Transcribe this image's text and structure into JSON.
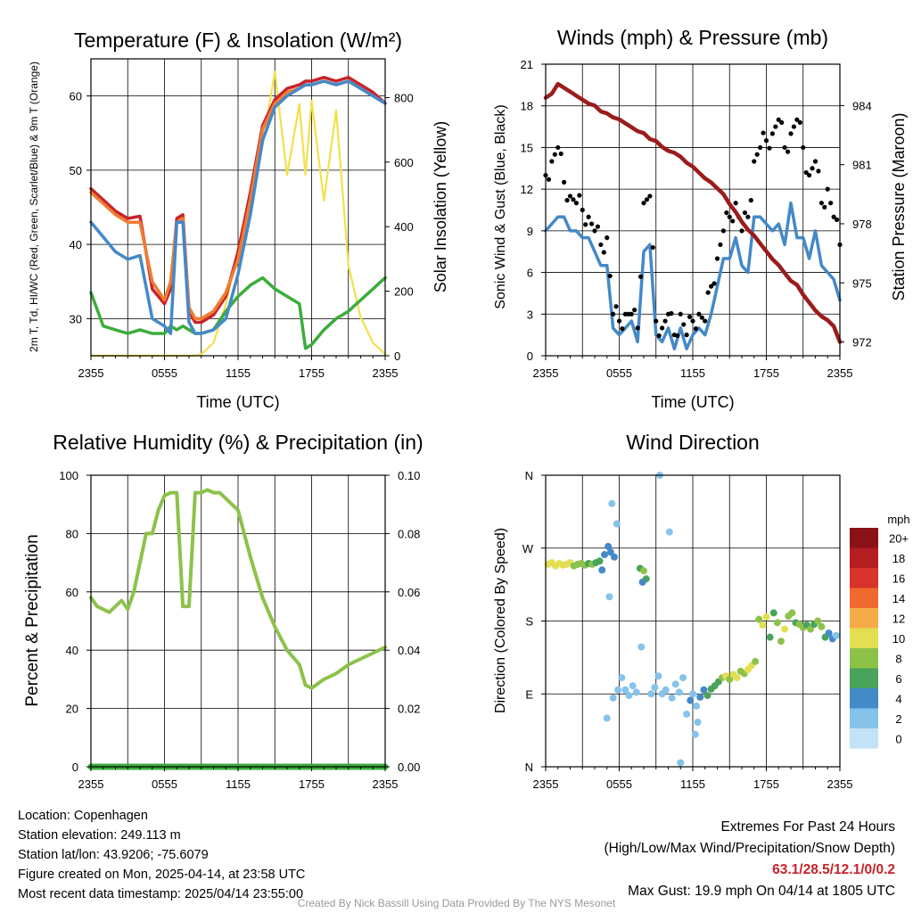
{
  "time_ticks": [
    "2355",
    "0555",
    "1155",
    "1755",
    "2355"
  ],
  "chart_data": [
    {
      "type": "line",
      "title": "Temperature (F) & Insolation (W/m²)",
      "xlabel": "Time (UTC)",
      "ylabel": "2m T, Td, HI/WC (Red, Green, Scarlet/Blue) & 9m T (Orange)",
      "y2label": "Solar Insolation (Yellow)",
      "ylim": [
        25,
        65
      ],
      "yticks": [
        30,
        40,
        50,
        60
      ],
      "y2lim": [
        0,
        920
      ],
      "y2ticks": [
        0,
        200,
        400,
        600,
        800
      ],
      "x_hours": [
        0,
        1,
        2,
        3,
        4,
        5,
        6,
        6.5,
        7,
        7.5,
        8,
        8.5,
        9,
        10,
        11,
        12,
        13,
        14,
        15,
        16,
        17,
        17.5,
        18,
        19,
        20,
        21,
        22,
        23,
        24
      ],
      "series": [
        {
          "name": "2m T",
          "color": "#c8232a",
          "values": [
            47.5,
            46,
            44.5,
            43.5,
            43.8,
            34,
            32,
            34,
            43.5,
            44,
            31,
            29.5,
            29.5,
            30.5,
            33,
            39,
            47,
            56,
            59.5,
            61,
            61.5,
            62,
            62,
            62.5,
            62,
            62.5,
            61.5,
            60.5,
            59
          ]
        },
        {
          "name": "9m T",
          "color": "#f07c30",
          "values": [
            47,
            45.5,
            44,
            43,
            43,
            35,
            32.5,
            35,
            43,
            43.5,
            31.5,
            30,
            30,
            31,
            33.5,
            38,
            46,
            55.5,
            59,
            60.5,
            61,
            61.5,
            61.5,
            62,
            61.5,
            62,
            61,
            60,
            59
          ]
        },
        {
          "name": "HI/WC",
          "color": "#4489c8",
          "values": [
            43,
            41,
            39,
            38,
            38.5,
            30,
            29,
            28,
            43,
            43,
            29.5,
            28,
            28,
            28.5,
            30,
            36,
            44,
            54,
            58.5,
            60,
            61,
            61.5,
            61.5,
            62,
            61.5,
            62,
            61,
            60,
            59
          ]
        },
        {
          "name": "Td",
          "color": "#3bac3b",
          "values": [
            33.5,
            29,
            28.5,
            28,
            28.5,
            28,
            28,
            29,
            28.5,
            29,
            28.5,
            28,
            28,
            28.5,
            31,
            33,
            34.5,
            35.5,
            34,
            33,
            32,
            26,
            26.5,
            28.5,
            30,
            31,
            32.5,
            34,
            35.5
          ]
        },
        {
          "name": "Solar Insolation",
          "color": "#f2e04d",
          "axis": "y2",
          "values": [
            0,
            0,
            0,
            0,
            0,
            0,
            0,
            0,
            0,
            0,
            0,
            0,
            5,
            40,
            160,
            330,
            500,
            650,
            880,
            560,
            780,
            560,
            790,
            480,
            760,
            280,
            120,
            40,
            5
          ]
        }
      ]
    },
    {
      "type": "line",
      "title": "Winds (mph) & Pressure (mb)",
      "xlabel": "Time (UTC)",
      "ylabel": "Sonic Wind & Gust (Blue, Black)",
      "y2label": "Station Pressure (Maroon)",
      "ylim": [
        0,
        21
      ],
      "yticks": [
        0,
        3,
        6,
        9,
        12,
        15,
        18,
        21
      ],
      "y2lim": [
        971.3,
        986.1
      ],
      "y2ticks": [
        972,
        975,
        978,
        981,
        984
      ],
      "x_hours": [
        0,
        0.5,
        1,
        1.5,
        2,
        2.5,
        3,
        3.5,
        4,
        4.5,
        5,
        5.5,
        6,
        6.5,
        7,
        7.5,
        8,
        8.5,
        9,
        9.5,
        10,
        10.5,
        11,
        11.5,
        12,
        12.5,
        13,
        13.5,
        14,
        14.5,
        15,
        15.5,
        16,
        16.5,
        17,
        17.5,
        18,
        18.5,
        19,
        19.5,
        20,
        20.5,
        21,
        21.5,
        22,
        22.5,
        23,
        23.5,
        24
      ],
      "series": [
        {
          "name": "Sonic Wind",
          "color": "#4489c8",
          "values": [
            9,
            9.5,
            10,
            10,
            9,
            9,
            8.5,
            8.5,
            7.5,
            6.5,
            6.5,
            2,
            1.5,
            2,
            2.5,
            1,
            7.5,
            8,
            1.5,
            1,
            2,
            0.5,
            2,
            0.5,
            1.5,
            2,
            1.5,
            3,
            5,
            7,
            7,
            8.5,
            6.5,
            6,
            10,
            10,
            9.5,
            9,
            9.5,
            8,
            11,
            8.5,
            8.5,
            7,
            9,
            6.5,
            6,
            5.5,
            4
          ]
        },
        {
          "name": "Gust",
          "color": "#000000",
          "values": [
            13,
            14,
            15,
            12.5,
            11.5,
            11,
            10.5,
            10,
            9,
            8,
            8.5,
            3,
            2.5,
            3,
            3,
            2,
            11,
            11.5,
            2.5,
            2,
            3,
            1.5,
            3,
            1.5,
            2.5,
            3,
            2.5,
            5,
            7,
            9,
            10,
            11,
            9,
            10,
            14,
            15,
            15.5,
            16,
            17,
            15,
            16,
            17,
            15,
            13,
            14,
            11,
            12,
            10,
            8
          ]
        },
        {
          "name": "Station Pressure",
          "color": "#9b1c1c",
          "axis": "y2",
          "values": [
            984.4,
            984.6,
            985.1,
            984.9,
            984.7,
            984.5,
            984.3,
            984.1,
            984.0,
            983.7,
            983.6,
            983.4,
            983.3,
            983.1,
            982.9,
            982.7,
            982.6,
            982.3,
            982.2,
            981.9,
            981.7,
            981.6,
            981.4,
            981.1,
            980.9,
            980.6,
            980.3,
            980.1,
            979.8,
            979.5,
            979.0,
            978.6,
            978.1,
            977.7,
            977.4,
            977.0,
            976.6,
            976.2,
            975.9,
            975.5,
            975.1,
            974.9,
            974.4,
            974.0,
            973.6,
            973.3,
            973.1,
            972.8,
            972.0
          ]
        }
      ]
    },
    {
      "type": "line",
      "title": "Relative Humidity (%) & Precipitation (in)",
      "ylabel": "Percent & Precipitation",
      "ylim": [
        0,
        100
      ],
      "yticks": [
        0,
        20,
        40,
        60,
        80,
        100
      ],
      "y2lim": [
        0,
        0.1
      ],
      "y2ticks": [
        "0.00",
        "0.02",
        "0.04",
        "0.06",
        "0.08",
        "0.10"
      ],
      "x_hours": [
        0,
        0.5,
        1,
        1.5,
        2,
        2.5,
        3,
        3.5,
        4,
        4.5,
        5,
        5.5,
        6,
        6.5,
        7,
        7.5,
        8,
        8.5,
        9,
        9.5,
        10,
        10.5,
        11,
        11.5,
        12,
        13,
        14,
        15,
        16,
        17,
        17.5,
        18,
        19,
        20,
        21,
        22,
        23,
        24
      ],
      "series": [
        {
          "name": "Relative Humidity",
          "color": "#8cc24a",
          "values": [
            58,
            55,
            54,
            53,
            55,
            57,
            54,
            60,
            70,
            80,
            80,
            88,
            93,
            94,
            94,
            55,
            55,
            94,
            94,
            95,
            94,
            94,
            92,
            90,
            88,
            72,
            58,
            48,
            40,
            35,
            28,
            27,
            30,
            32,
            35,
            37,
            39,
            41
          ]
        },
        {
          "name": "Precipitation",
          "color": "#3bac3b",
          "axis": "y2",
          "values": [
            0,
            0,
            0,
            0,
            0,
            0,
            0,
            0,
            0,
            0,
            0,
            0,
            0,
            0,
            0,
            0,
            0,
            0,
            0,
            0,
            0,
            0,
            0,
            0,
            0,
            0,
            0,
            0,
            0,
            0,
            0,
            0,
            0,
            0,
            0,
            0,
            0,
            0
          ]
        }
      ]
    },
    {
      "type": "scatter",
      "title": "Wind Direction",
      "ylabel": "Direction (Colored By Speed)",
      "yticks": [
        "N",
        "E",
        "S",
        "W",
        "N"
      ],
      "ylim": [
        0,
        360
      ],
      "colorbar_label": "mph",
      "colorbar_ticks": [
        "0",
        "2",
        "4",
        "6",
        "8",
        "10",
        "12",
        "14",
        "16",
        "18",
        "20+"
      ],
      "colorbar_colors": [
        "#c2e2f5",
        "#85c3ea",
        "#4489c8",
        "#4aa35a",
        "#8cc24a",
        "#e3de52",
        "#f6ab49",
        "#ef6a2e",
        "#d8332c",
        "#b51e21",
        "#8a1117"
      ],
      "points": [
        {
          "x": 0.2,
          "dir": 250,
          "speed": 9
        },
        {
          "x": 0.5,
          "dir": 252,
          "speed": 10
        },
        {
          "x": 0.8,
          "dir": 248,
          "speed": 9
        },
        {
          "x": 1.1,
          "dir": 251,
          "speed": 10
        },
        {
          "x": 1.4,
          "dir": 249,
          "speed": 10
        },
        {
          "x": 1.7,
          "dir": 250,
          "speed": 9
        },
        {
          "x": 2.0,
          "dir": 252,
          "speed": 9
        },
        {
          "x": 2.3,
          "dir": 248,
          "speed": 8
        },
        {
          "x": 2.6,
          "dir": 250,
          "speed": 8
        },
        {
          "x": 2.9,
          "dir": 251,
          "speed": 7
        },
        {
          "x": 3.2,
          "dir": 249,
          "speed": 7
        },
        {
          "x": 3.5,
          "dir": 251,
          "speed": 6
        },
        {
          "x": 3.8,
          "dir": 250,
          "speed": 7
        },
        {
          "x": 4.1,
          "dir": 252,
          "speed": 6
        },
        {
          "x": 4.4,
          "dir": 254,
          "speed": 5
        },
        {
          "x": 4.6,
          "dir": 243,
          "speed": 4
        },
        {
          "x": 4.8,
          "dir": 262,
          "speed": 3
        },
        {
          "x": 5.1,
          "dir": 272,
          "speed": 4
        },
        {
          "x": 5.3,
          "dir": 265,
          "speed": 4
        },
        {
          "x": 5.6,
          "dir": 259,
          "speed": 3
        },
        {
          "x": 5.8,
          "dir": 300,
          "speed": 1
        },
        {
          "x": 5.4,
          "dir": 325,
          "speed": 1
        },
        {
          "x": 5.0,
          "dir": 60,
          "speed": 1
        },
        {
          "x": 5.2,
          "dir": 210,
          "speed": 1
        },
        {
          "x": 5.5,
          "dir": 85,
          "speed": 2
        },
        {
          "x": 5.9,
          "dir": 95,
          "speed": 2
        },
        {
          "x": 6.2,
          "dir": 110,
          "speed": 1
        },
        {
          "x": 6.5,
          "dir": 95,
          "speed": 2
        },
        {
          "x": 6.8,
          "dir": 88,
          "speed": 1
        },
        {
          "x": 7.1,
          "dir": 100,
          "speed": 2
        },
        {
          "x": 7.4,
          "dir": 92,
          "speed": 2
        },
        {
          "x": 7.7,
          "dir": 245,
          "speed": 6
        },
        {
          "x": 8.0,
          "dir": 242,
          "speed": 7
        },
        {
          "x": 8.2,
          "dir": 232,
          "speed": 5
        },
        {
          "x": 7.9,
          "dir": 228,
          "speed": 4
        },
        {
          "x": 7.8,
          "dir": 148,
          "speed": 1
        },
        {
          "x": 8.6,
          "dir": 90,
          "speed": 2
        },
        {
          "x": 8.9,
          "dir": 98,
          "speed": 2
        },
        {
          "x": 9.2,
          "dir": 112,
          "speed": 1
        },
        {
          "x": 9.5,
          "dir": 90,
          "speed": 2
        },
        {
          "x": 9.8,
          "dir": 95,
          "speed": 2
        },
        {
          "x": 10.1,
          "dir": 290,
          "speed": 1
        },
        {
          "x": 10.3,
          "dir": 85,
          "speed": 2
        },
        {
          "x": 10.6,
          "dir": 102,
          "speed": 2
        },
        {
          "x": 10.9,
          "dir": 92,
          "speed": 2
        },
        {
          "x": 11.2,
          "dir": 110,
          "speed": 1
        },
        {
          "x": 11.5,
          "dir": 65,
          "speed": 2
        },
        {
          "x": 11.8,
          "dir": 82,
          "speed": 3
        },
        {
          "x": 12.0,
          "dir": 90,
          "speed": 1
        },
        {
          "x": 12.3,
          "dir": 75,
          "speed": 2
        },
        {
          "x": 12.6,
          "dir": 86,
          "speed": 3
        },
        {
          "x": 12.9,
          "dir": 95,
          "speed": 4
        },
        {
          "x": 13.2,
          "dir": 88,
          "speed": 5
        },
        {
          "x": 13.5,
          "dir": 96,
          "speed": 6
        },
        {
          "x": 13.8,
          "dir": 100,
          "speed": 5
        },
        {
          "x": 14.1,
          "dir": 105,
          "speed": 6
        },
        {
          "x": 14.4,
          "dir": 110,
          "speed": 7
        },
        {
          "x": 14.7,
          "dir": 112,
          "speed": 9
        },
        {
          "x": 15.0,
          "dir": 108,
          "speed": 8
        },
        {
          "x": 15.3,
          "dir": 114,
          "speed": 10
        },
        {
          "x": 15.6,
          "dir": 110,
          "speed": 9
        },
        {
          "x": 15.9,
          "dir": 118,
          "speed": 8
        },
        {
          "x": 16.2,
          "dir": 115,
          "speed": 7
        },
        {
          "x": 16.5,
          "dir": 120,
          "speed": 9
        },
        {
          "x": 16.8,
          "dir": 125,
          "speed": 10
        },
        {
          "x": 17.1,
          "dir": 130,
          "speed": 7
        },
        {
          "x": 17.4,
          "dir": 182,
          "speed": 8
        },
        {
          "x": 17.7,
          "dir": 175,
          "speed": 9
        },
        {
          "x": 18.0,
          "dir": 185,
          "speed": 10
        },
        {
          "x": 18.3,
          "dir": 160,
          "speed": 5
        },
        {
          "x": 18.6,
          "dir": 190,
          "speed": 6
        },
        {
          "x": 18.9,
          "dir": 178,
          "speed": 8
        },
        {
          "x": 19.2,
          "dir": 155,
          "speed": 7
        },
        {
          "x": 19.5,
          "dir": 170,
          "speed": 9
        },
        {
          "x": 19.8,
          "dir": 186,
          "speed": 8
        },
        {
          "x": 20.1,
          "dir": 190,
          "speed": 7
        },
        {
          "x": 20.4,
          "dir": 178,
          "speed": 6
        },
        {
          "x": 20.7,
          "dir": 176,
          "speed": 8
        },
        {
          "x": 21.0,
          "dir": 172,
          "speed": 7
        },
        {
          "x": 21.3,
          "dir": 175,
          "speed": 6
        },
        {
          "x": 21.6,
          "dir": 170,
          "speed": 8
        },
        {
          "x": 21.9,
          "dir": 176,
          "speed": 6
        },
        {
          "x": 22.2,
          "dir": 180,
          "speed": 7
        },
        {
          "x": 22.5,
          "dir": 173,
          "speed": 7
        },
        {
          "x": 22.8,
          "dir": 160,
          "speed": 5
        },
        {
          "x": 23.1,
          "dir": 165,
          "speed": 4
        },
        {
          "x": 23.4,
          "dir": 158,
          "speed": 3
        },
        {
          "x": 23.7,
          "dir": 162,
          "speed": 2
        },
        {
          "x": 12.4,
          "dir": 55,
          "speed": 1
        },
        {
          "x": 12.2,
          "dir": 40,
          "speed": 1
        },
        {
          "x": 11.0,
          "dir": 5,
          "speed": 1
        },
        {
          "x": 9.3,
          "dir": 360,
          "speed": 1
        }
      ]
    }
  ],
  "info": {
    "location": "Location: Copenhagen",
    "elevation": "Station elevation: 249.113 m",
    "latlon": "Station lat/lon: 43.9206; -75.6079",
    "created": "Figure created on Mon, 2025-04-14, at 23:58 UTC",
    "recent": "Most recent data timestamp: 2025/04/14 23:55:00"
  },
  "extremes": {
    "title": "Extremes For Past 24 Hours",
    "legend": "(High/Low/Max Wind/Precipitation/Snow Depth)",
    "values": "63.1/28.5/12.1/0/0.2",
    "gust": "Max Gust: 19.9 mph On 04/14 at 1805 UTC"
  },
  "credit": "Created By Nick Bassill Using Data Provided By The NYS Mesonet"
}
